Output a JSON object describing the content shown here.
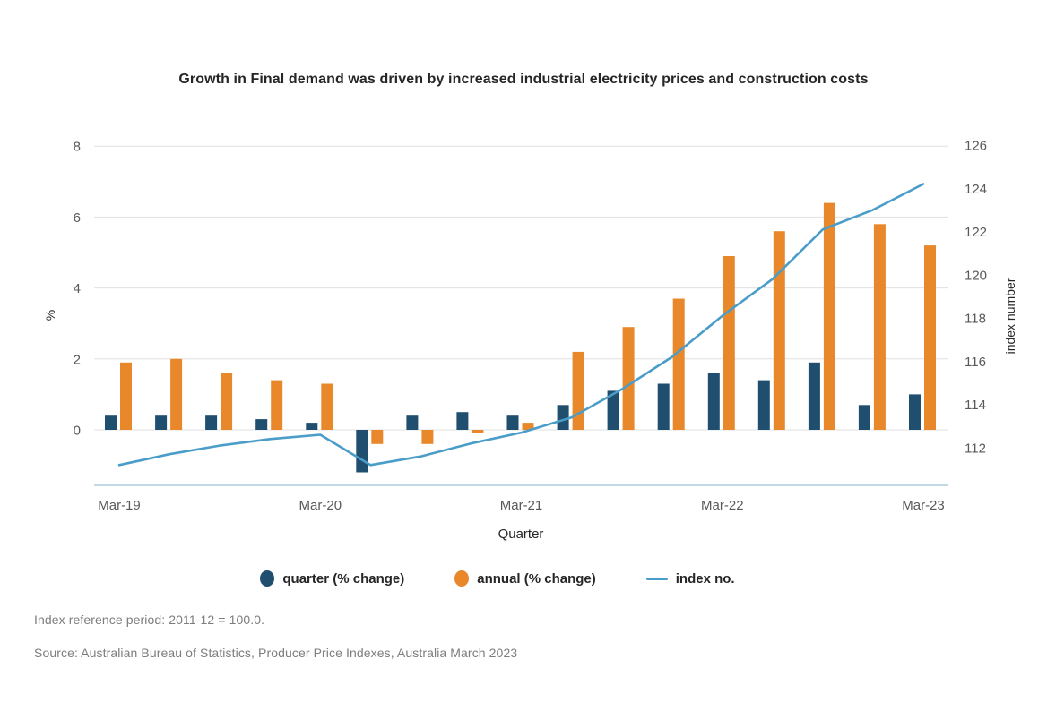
{
  "title": "Growth in Final demand was driven by increased industrial electricity prices and construction costs",
  "chart_data": {
    "type": "bar+line",
    "categories": [
      "Mar-19",
      "Jun-19",
      "Sep-19",
      "Dec-19",
      "Mar-20",
      "Jun-20",
      "Sep-20",
      "Dec-20",
      "Mar-21",
      "Jun-21",
      "Sep-21",
      "Dec-21",
      "Mar-22",
      "Jun-22",
      "Sep-22",
      "Dec-22",
      "Mar-23"
    ],
    "series": [
      {
        "name": "quarter (% change)",
        "type": "bar",
        "axis": "left",
        "color": "#1f4e6f",
        "values": [
          0.4,
          0.4,
          0.4,
          0.3,
          0.2,
          -1.2,
          0.4,
          0.5,
          0.4,
          0.7,
          1.1,
          1.3,
          1.6,
          1.4,
          1.9,
          0.7,
          1.0
        ]
      },
      {
        "name": "annual (% change)",
        "type": "bar",
        "axis": "left",
        "color": "#e8882b",
        "values": [
          1.9,
          2.0,
          1.6,
          1.4,
          1.3,
          -0.4,
          -0.4,
          -0.1,
          0.2,
          2.2,
          2.9,
          3.7,
          4.9,
          5.6,
          6.4,
          5.8,
          5.2
        ]
      },
      {
        "name": "index no.",
        "type": "line",
        "axis": "right",
        "color": "#4a9dc9",
        "values": [
          111.2,
          111.7,
          112.1,
          112.4,
          112.6,
          111.2,
          111.6,
          112.2,
          112.7,
          113.4,
          114.7,
          116.2,
          118.1,
          119.8,
          122.1,
          123.0,
          124.2
        ]
      }
    ],
    "left_axis": {
      "label": "%",
      "ticks": [
        0,
        2,
        4,
        6,
        8
      ],
      "range": [
        -1.55,
        8.05
      ]
    },
    "right_axis": {
      "label": "index number",
      "ticks": [
        112,
        114,
        116,
        118,
        120,
        122,
        124,
        126
      ],
      "range": [
        110.3,
        126.75
      ]
    },
    "x_axis": {
      "label": "Quarter",
      "tick_labels": [
        "Mar-19",
        "Mar-20",
        "Mar-21",
        "Mar-22",
        "Mar-23"
      ],
      "tick_indices": [
        0,
        4,
        8,
        12,
        16
      ]
    },
    "grid": true,
    "legend_position": "bottom"
  },
  "footnotes": {
    "reference": "Index reference period: 2011-12 = 100.0.",
    "source": "Source: Australian Bureau of Statistics, Producer Price Indexes, Australia March 2023"
  },
  "colors": {
    "quarter_bar": "#1f4e6f",
    "annual_bar": "#e8882b",
    "index_line": "#4a9dc9",
    "gridline": "#e0e0e0",
    "axis_baseline": "#aecddb",
    "tick_text": "#595959",
    "footnote_text": "#7d7d7d"
  }
}
